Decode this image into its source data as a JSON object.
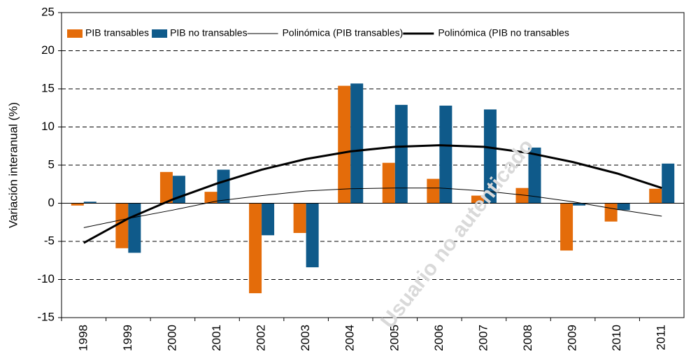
{
  "chart_data": {
    "type": "bar",
    "y_label": "Variación interanual  (%)",
    "annotation": "Usuario no autenticado",
    "categories": [
      "1998",
      "1999",
      "2000",
      "2001",
      "2002",
      "2003",
      "2004",
      "2005",
      "2006",
      "2007",
      "2008",
      "2009",
      "2010",
      "2011"
    ],
    "series": [
      {
        "name": "PIB transables",
        "color": "#e46c0a",
        "type": "bar",
        "values": [
          -0.3,
          -5.9,
          4.1,
          1.5,
          -11.8,
          -3.9,
          15.4,
          5.3,
          3.2,
          1.0,
          2.0,
          -6.2,
          -2.4,
          1.9
        ]
      },
      {
        "name": "PIB no transables",
        "color": "#0f5a8a",
        "type": "bar",
        "values": [
          0.2,
          -6.5,
          3.6,
          4.4,
          -4.2,
          -8.4,
          15.7,
          12.9,
          12.8,
          12.3,
          7.3,
          -0.3,
          -0.9,
          5.2
        ]
      },
      {
        "name": "Polinómica (PIB transables)",
        "color": "#000000",
        "type": "line",
        "width": 1,
        "values": [
          -3.2,
          -2.0,
          -0.9,
          0.3,
          1.0,
          1.6,
          1.9,
          2.0,
          2.0,
          1.6,
          1.0,
          0.2,
          -0.8,
          -1.7
        ]
      },
      {
        "name": "Polinómica (PIB no transables",
        "color": "#000000",
        "type": "line",
        "width": 3,
        "values": [
          -5.2,
          -2.0,
          0.5,
          2.6,
          4.4,
          5.8,
          6.8,
          7.4,
          7.6,
          7.4,
          6.6,
          5.4,
          3.9,
          2.0
        ]
      }
    ],
    "ylim": [
      -15,
      25
    ],
    "yticks": [
      -15,
      -10,
      -5,
      0,
      5,
      10,
      15,
      20,
      25
    ],
    "grid": true
  }
}
